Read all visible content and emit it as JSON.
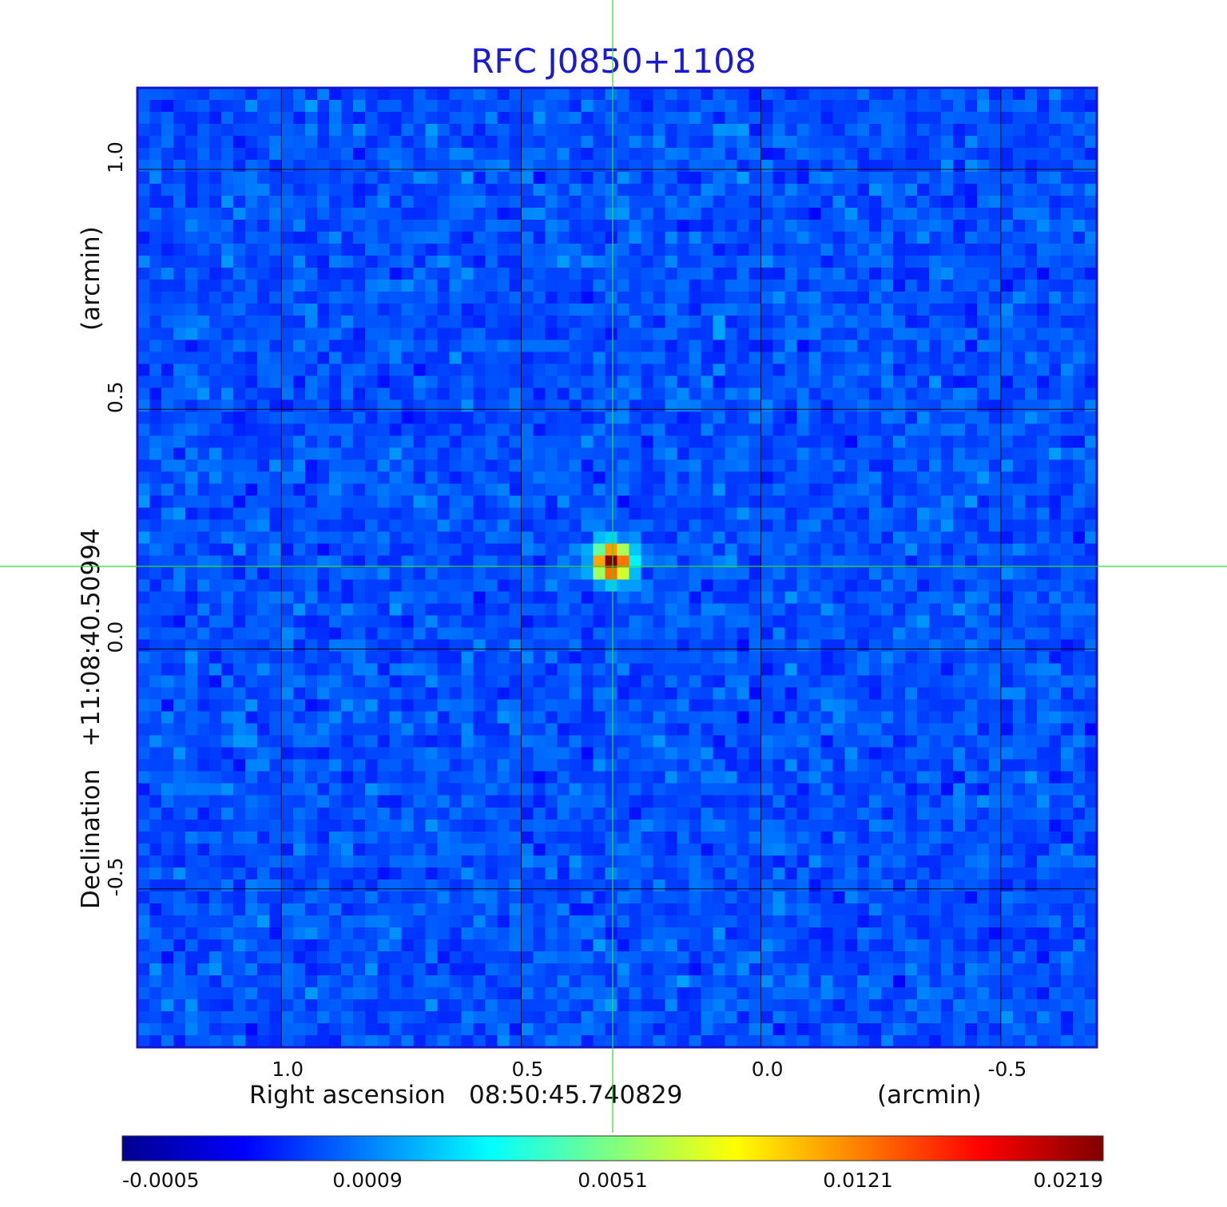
{
  "chart_data": {
    "type": "heatmap",
    "title": "RFC J0850+1108",
    "colormap": "jet",
    "background": "noise",
    "peak": {
      "ra_offset_arcmin": 0.31,
      "dec_offset_arcmin": 0.18
    },
    "xlabel": {
      "name": "Right ascension",
      "center": "08:50:45.740829",
      "unit": "(arcmin)"
    },
    "ylabel": {
      "name": "Declination",
      "center": "+11:08:40.50994",
      "unit": "(arcmin)"
    },
    "x_ticks": [
      "1.0",
      "0.5",
      "0.0",
      "-0.5"
    ],
    "x_tick_values": [
      1.0,
      0.5,
      0.0,
      -0.5
    ],
    "y_ticks": [
      "1.0",
      "0.5",
      "0.0",
      "-0.5"
    ],
    "y_tick_values": [
      1.0,
      0.5,
      0.0,
      -0.5
    ],
    "xlim": [
      1.3,
      -0.7
    ],
    "ylim": [
      -0.83,
      1.17
    ],
    "grid": true,
    "colorbar": {
      "ticks": [
        "-0.0005",
        "0.0009",
        "0.0051",
        "0.0121",
        "0.0219"
      ],
      "colors": [
        "#00008f",
        "#0000ff",
        "#0080ff",
        "#00ffff",
        "#80ff80",
        "#ffff00",
        "#ff8000",
        "#ff0000",
        "#800000"
      ]
    }
  }
}
